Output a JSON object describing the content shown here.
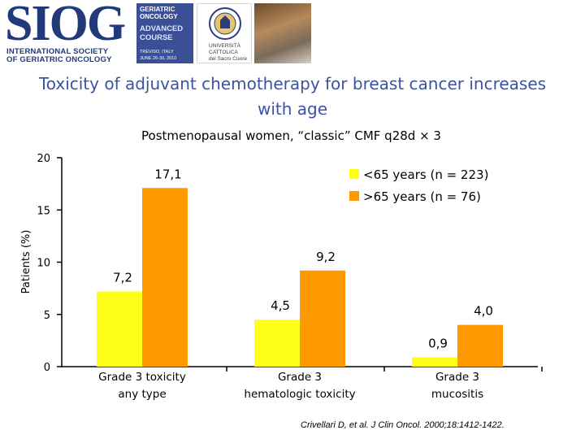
{
  "header": {
    "siog_word": "SIOG",
    "siog_line1": "INTERNATIONAL SOCIETY",
    "siog_line2": "OF GERIATRIC ONCOLOGY",
    "course_line1": "GERIATRIC",
    "course_line2": "ONCOLOGY",
    "course_line3": "ADVANCED",
    "course_line4": "COURSE",
    "course_line5": "TREVISO, ITALY",
    "course_line6": "JUNE 26-30, 2010",
    "univ_line1": "UNIVERSITÀ",
    "univ_line2": "CATTOLICA",
    "univ_line3": "del Sacro Cuore"
  },
  "slide": {
    "title": "Toxicity of adjuvant chemotherapy for breast cancer increases with age",
    "subtitle": "Postmenopausal women, “classic” CMF q28d × 3",
    "citation": "Crivellari D, et al. J Clin Oncol. 2000;18:1412-1422."
  },
  "colors": {
    "series_young": "#ffff1a",
    "series_old": "#ff9900",
    "title": "#3b52a6"
  },
  "chart_data": {
    "type": "bar",
    "ylabel": "Patients (%)",
    "ylim": [
      0,
      20
    ],
    "yticks": [
      0,
      5,
      10,
      15,
      20
    ],
    "ytick_labels": [
      "0",
      "5",
      "10",
      "15",
      "20"
    ],
    "categories": [
      [
        "Grade 3 toxicity",
        "any type"
      ],
      [
        "Grade 3",
        "hematologic toxicity"
      ],
      [
        "Grade 3",
        "mucositis"
      ]
    ],
    "series": [
      {
        "name": "<65 years (n = 223)",
        "values": [
          7.2,
          4.5,
          0.9
        ],
        "labels": [
          "7,2",
          "4,5",
          "0,9"
        ],
        "color": "#ffff1a"
      },
      {
        "name": ">65 years (n = 76)",
        "values": [
          17.1,
          9.2,
          4.0
        ],
        "labels": [
          "17,1",
          "9,2",
          "4,0"
        ],
        "color": "#ff9900"
      }
    ],
    "legend": "top-right",
    "grid": false
  }
}
